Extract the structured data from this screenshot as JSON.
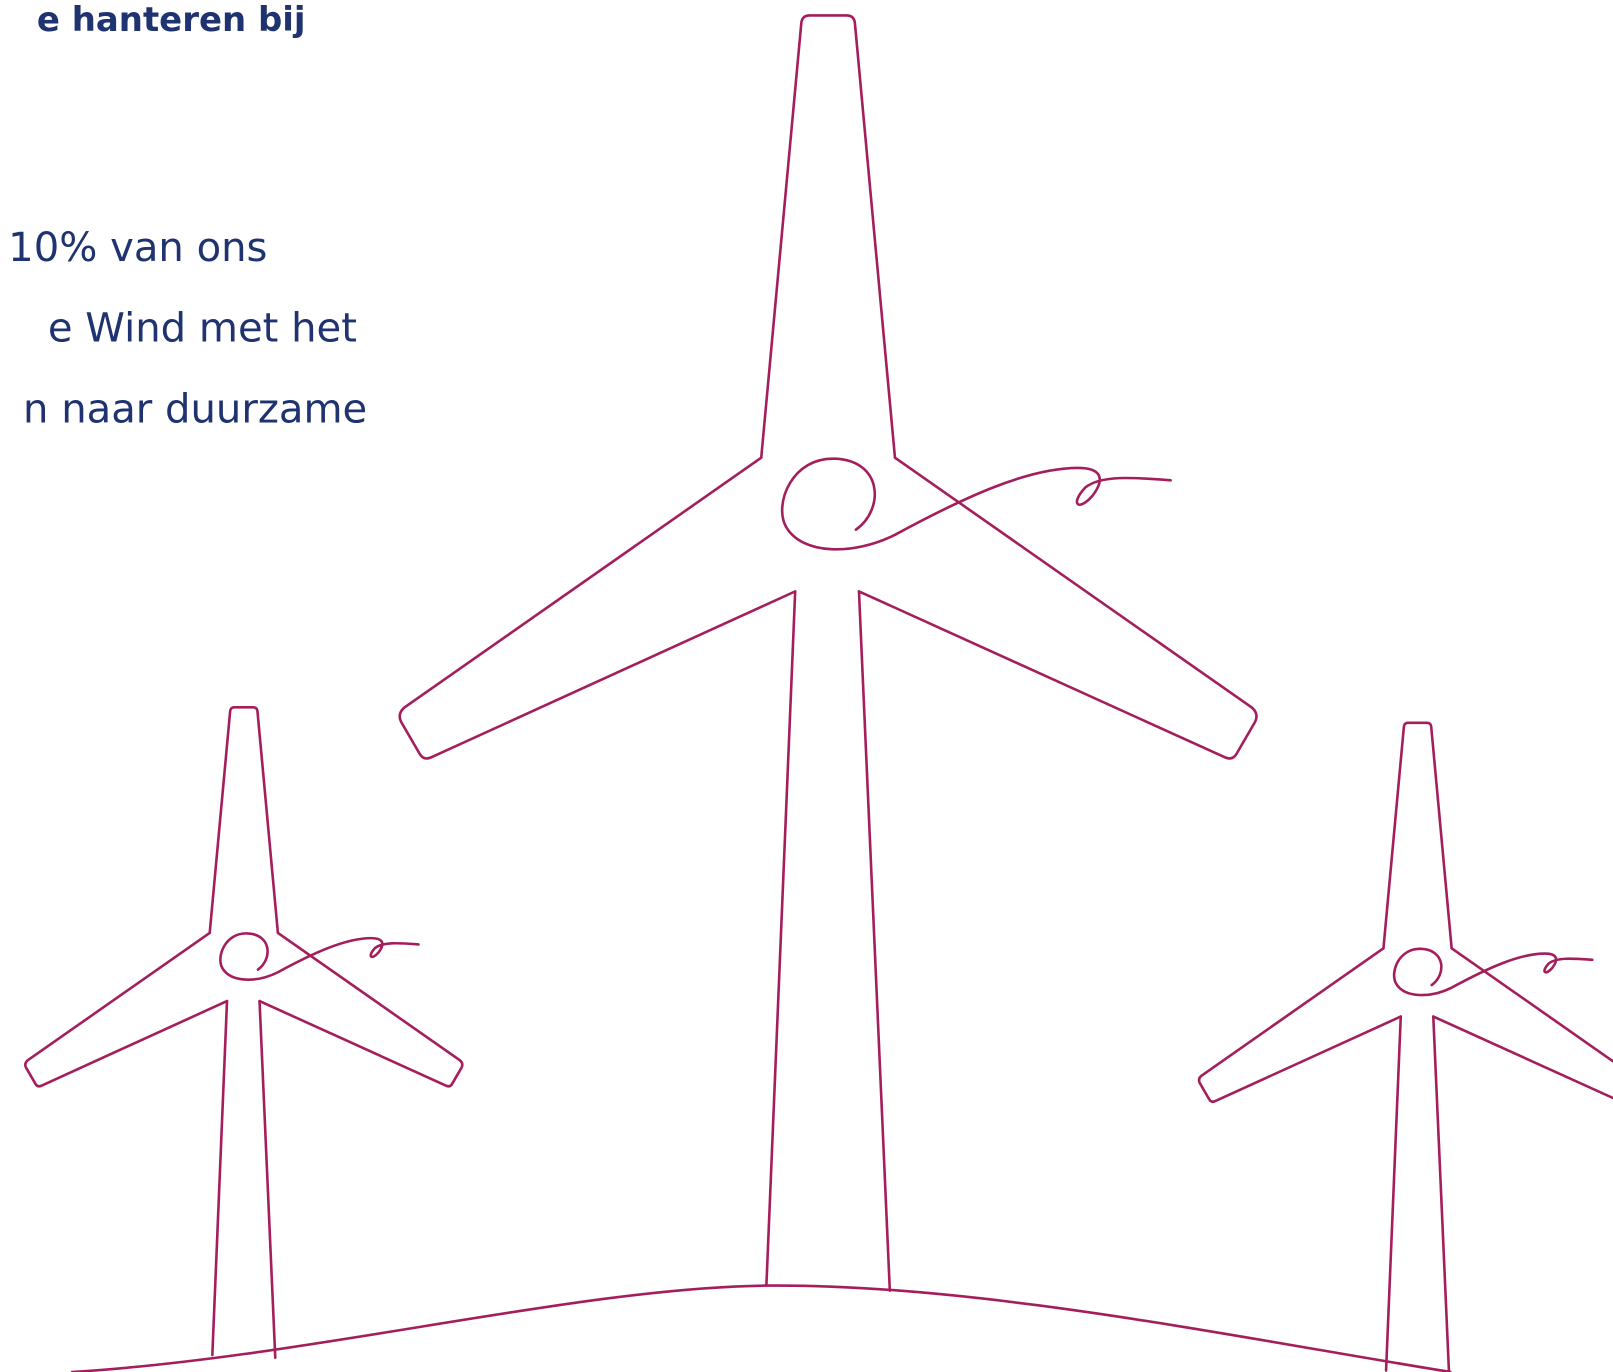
{
  "text": {
    "heading": "e hanteren bij",
    "lines": [
      "10% van ons",
      "e Wind met het",
      "n naar duurzame"
    ]
  }
}
